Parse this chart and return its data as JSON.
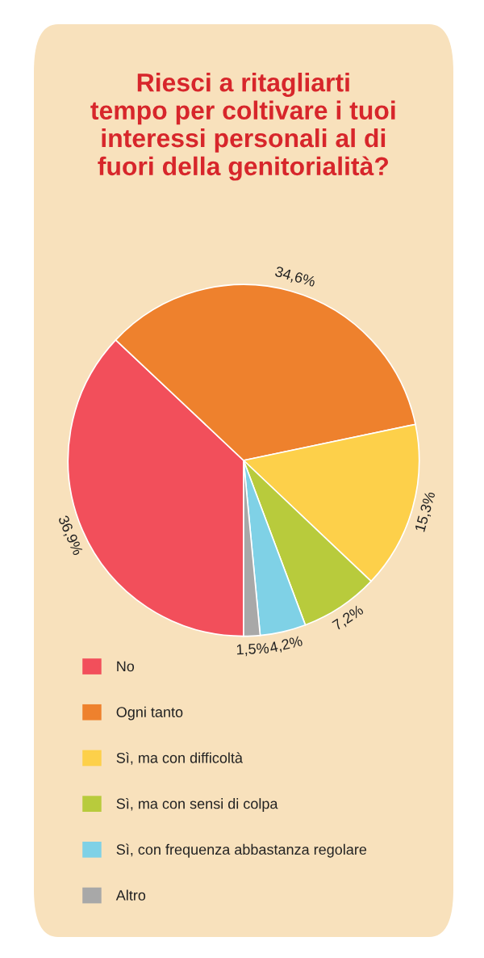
{
  "chart_data": {
    "type": "pie",
    "title": "Riesci a ritagliarti\ntempo per coltivare i tuoi\ninteressi personali al di\nfuori della genitorialità?",
    "categories": [
      "No",
      "Ogni tanto",
      "Sì, ma con difficoltà",
      "Sì, ma con sensi di colpa",
      "Sì, con frequenza abbastanza regolare",
      "Altro"
    ],
    "values": [
      36.9,
      34.6,
      15.3,
      7.2,
      4.2,
      1.5
    ],
    "value_labels": [
      "36,9%",
      "34,6%",
      "15,3%",
      "7,2%",
      "4,2%",
      "1,5%"
    ],
    "colors": [
      "#f24f5b",
      "#ee812d",
      "#fdd04a",
      "#b8cb3c",
      "#7fd1e6",
      "#a8a8a8"
    ],
    "legend": "bottom"
  }
}
